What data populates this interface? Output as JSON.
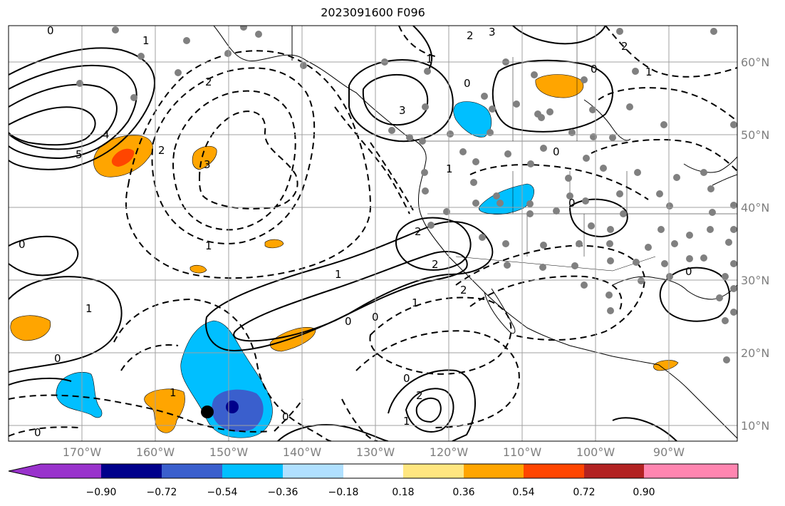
{
  "title": "2023091600 F096",
  "map": {
    "projection": "cylindrical",
    "lon_range": [
      -178,
      -79
    ],
    "lat_range": [
      8,
      65
    ],
    "latitude_labels": [
      "60°N",
      "50°N",
      "40°N",
      "30°N",
      "20°N",
      "10°N"
    ],
    "longitude_labels": [
      "170°W",
      "160°W",
      "150°W",
      "140°W",
      "130°W",
      "120°W",
      "110°W",
      "100°W",
      "90°W"
    ],
    "grid": true,
    "contour_labels": [
      "0",
      "1",
      "2",
      "3",
      "4",
      "5",
      "1",
      "2",
      "3",
      "1",
      "0",
      "0",
      "2",
      "1",
      "0",
      "1",
      "2",
      "3",
      "0",
      "0",
      "0",
      "1",
      "2",
      "2",
      "1",
      "0",
      "2",
      "1",
      "0",
      "0",
      "0",
      "1",
      "2",
      "1",
      "0",
      "0"
    ],
    "stations_color": "#808080",
    "markers": [
      {
        "name": "black-dot",
        "color": "#000000"
      },
      {
        "name": "navy-dot",
        "color": "#00008b"
      }
    ]
  },
  "colorbar": {
    "tick_labels": [
      "−0.90",
      "−0.72",
      "−0.54",
      "−0.36",
      "−0.18",
      "0.18",
      "0.36",
      "0.54",
      "0.72",
      "0.90"
    ],
    "colors": [
      "#9932cc",
      "#00008b",
      "#3a5fcd",
      "#00bfff",
      "#b0e0ff",
      "#ffffff",
      "#ffe680",
      "#ffa500",
      "#ff4500",
      "#b22222",
      "#ff85b0"
    ]
  }
}
